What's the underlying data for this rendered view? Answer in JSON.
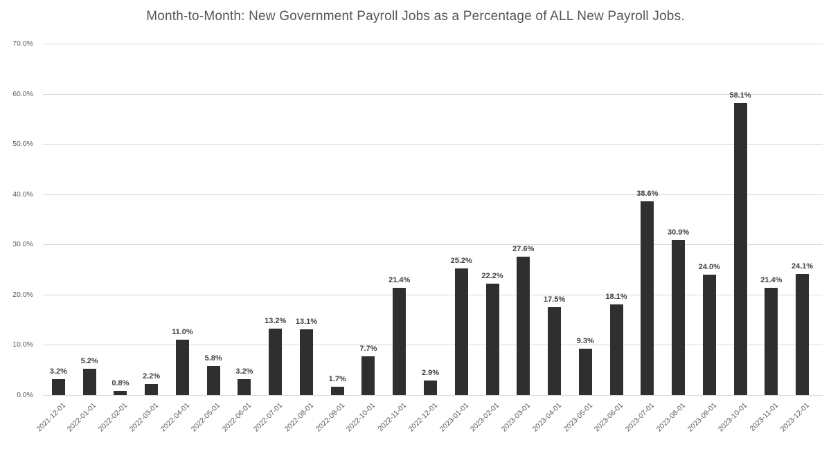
{
  "chart_data": {
    "type": "bar",
    "title": "Month-to-Month: New Government Payroll Jobs as a Percentage of ALL New Payroll Jobs.",
    "categories": [
      "2021-12-01",
      "2022-01-01",
      "2022-02-01",
      "2022-03-01",
      "2022-04-01",
      "2022-05-01",
      "2022-06-01",
      "2022-07-01",
      "2022-08-01",
      "2022-09-01",
      "2022-10-01",
      "2022-11-01",
      "2022-12-01",
      "2023-01-01",
      "2023-02-01",
      "2023-03-01",
      "2023-04-01",
      "2023-05-01",
      "2023-06-01",
      "2023-07-01",
      "2023-08-01",
      "2023-09-01",
      "2023-10-01",
      "2023-11-01",
      "2023-12-01"
    ],
    "values": [
      3.2,
      5.2,
      0.8,
      2.2,
      11.0,
      5.8,
      3.2,
      13.2,
      13.1,
      1.7,
      7.7,
      21.4,
      2.9,
      25.2,
      22.2,
      27.6,
      17.5,
      9.3,
      18.1,
      38.6,
      30.9,
      24.0,
      58.1,
      21.4,
      24.1
    ],
    "data_labels": [
      "3.2%",
      "5.2%",
      "0.8%",
      "2.2%",
      "11.0%",
      "5.8%",
      "3.2%",
      "13.2%",
      "13.1%",
      "1.7%",
      "7.7%",
      "21.4%",
      "2.9%",
      "25.2%",
      "22.2%",
      "27.6%",
      "17.5%",
      "9.3%",
      "18.1%",
      "38.6%",
      "30.9%",
      "24.0%",
      "58.1%",
      "21.4%",
      "24.1%"
    ],
    "y_tick_labels": [
      "0.0%",
      "10.0%",
      "20.0%",
      "30.0%",
      "40.0%",
      "50.0%",
      "60.0%",
      "70.0%"
    ],
    "y_tick_values": [
      0,
      10,
      20,
      30,
      40,
      50,
      60,
      70
    ],
    "xlabel": "",
    "ylabel": "",
    "ylim": [
      0,
      70
    ],
    "grid": true,
    "legend": false,
    "colors": {
      "bar": "#2f2f2f",
      "grid": "#d9d9d9",
      "value_label": "#404040",
      "axis_text": "#595959",
      "title": "#555555",
      "background": "#ffffff"
    }
  }
}
